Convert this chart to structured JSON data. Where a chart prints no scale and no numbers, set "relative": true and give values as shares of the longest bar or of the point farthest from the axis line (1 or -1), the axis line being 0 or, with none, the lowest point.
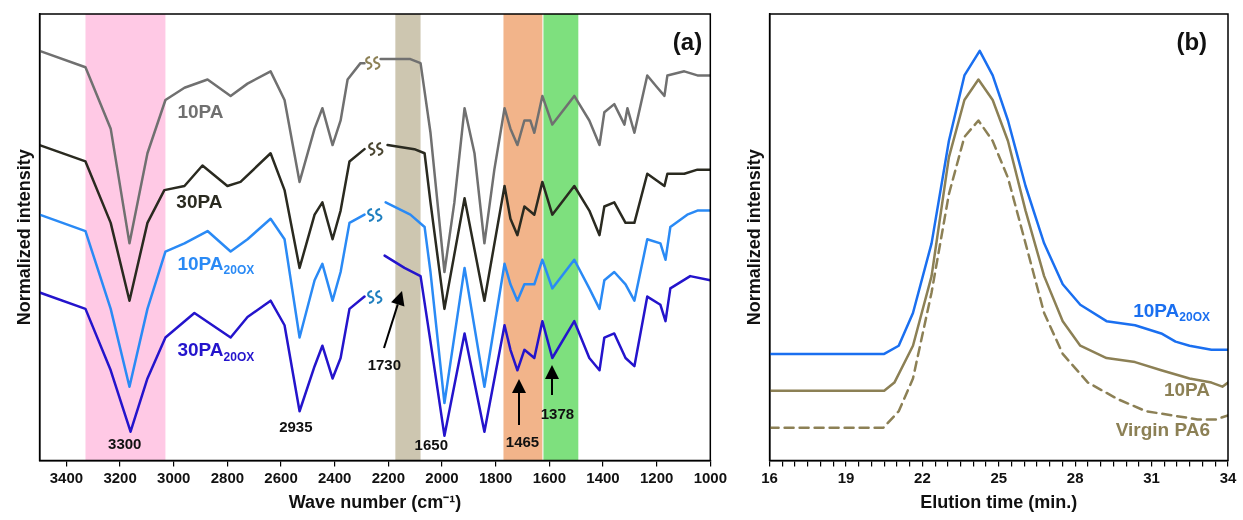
{
  "chart_data": [
    {
      "type": "line",
      "xlabel": "Wave number (cm⁻¹)",
      "ylabel": "Normalized intensity",
      "relative": true,
      "legend": false,
      "grid": false,
      "xlim": [
        3500,
        1000
      ],
      "xticks": [
        3400,
        3200,
        3000,
        2800,
        2600,
        2400,
        2200,
        2000,
        1800,
        1600,
        1400,
        1200,
        1000
      ],
      "bands": [
        {
          "axis": "x",
          "from": 3329,
          "to": 3031,
          "color": "#ffc9e5"
        },
        {
          "axis": "x",
          "from": 2174,
          "to": 2080,
          "color": "#cdc6b0"
        },
        {
          "axis": "x",
          "from": 1771,
          "to": 1626,
          "color": "#f2b48a"
        },
        {
          "axis": "x",
          "from": 1622,
          "to": 1492,
          "color": "#7ee07e"
        }
      ],
      "series": [
        {
          "name": "10PA",
          "color": "#707070",
          "x": [
            3500,
            3329,
            3235,
            3165,
            3098,
            3031,
            2960,
            2874,
            2788,
            2725,
            2639,
            2587,
            2531,
            2475,
            2446,
            2408,
            2378,
            2352,
            2304,
            2289,
            2250,
            2229,
            2118,
            2080,
            2043,
            1991,
            1954,
            1916,
            1879,
            1842,
            1805,
            1767,
            1745,
            1719,
            1693,
            1671,
            1656,
            1626,
            1589,
            1507,
            1451,
            1413,
            1395,
            1358,
            1320,
            1309,
            1283,
            1235,
            1197,
            1171,
            1160,
            1097,
            1048,
            1000
          ],
          "values": [
            1,
            0.96,
            0.81,
            0.53,
            0.75,
            0.88,
            0.91,
            0.93,
            0.89,
            0.92,
            0.95,
            0.88,
            0.68,
            0.81,
            0.86,
            0.77,
            0.83,
            0.93,
            0.97,
            0.97,
            null,
            0.98,
            0.98,
            0.97,
            0.8,
            0.46,
            0.63,
            0.86,
            0.75,
            0.53,
            0.71,
            0.86,
            0.81,
            0.77,
            0.83,
            0.83,
            0.8,
            0.89,
            0.82,
            0.89,
            0.83,
            0.77,
            0.85,
            0.87,
            0.82,
            0.86,
            0.8,
            0.94,
            0.91,
            0.89,
            0.94,
            0.95,
            0.94,
            0.94
          ]
        },
        {
          "name": "30PA",
          "color": "#2a2a20",
          "x": [
            3500,
            3329,
            3235,
            3165,
            3098,
            3035,
            2960,
            2893,
            2800,
            2751,
            2639,
            2587,
            2531,
            2475,
            2446,
            2408,
            2378,
            2345,
            2289,
            2250,
            2203,
            2103,
            2065,
            2043,
            1991,
            1916,
            1842,
            1767,
            1745,
            1719,
            1693,
            1656,
            1626,
            1589,
            1507,
            1451,
            1413,
            1395,
            1358,
            1316,
            1283,
            1235,
            1171,
            1160,
            1097,
            1048,
            1000
          ],
          "values": [
            0.77,
            0.73,
            0.58,
            0.39,
            0.58,
            0.66,
            0.67,
            0.72,
            0.67,
            0.68,
            0.75,
            0.66,
            0.47,
            0.6,
            0.63,
            0.54,
            0.61,
            0.73,
            0.76,
            null,
            0.77,
            0.76,
            0.75,
            0.63,
            0.37,
            0.64,
            0.39,
            0.67,
            0.59,
            0.55,
            0.62,
            0.6,
            0.68,
            0.6,
            0.67,
            0.61,
            0.55,
            0.62,
            0.63,
            0.58,
            0.58,
            0.7,
            0.67,
            0.7,
            0.7,
            0.71,
            0.71
          ]
        },
        {
          "name": "10PA$_{20OX}$",
          "color": "#2a8af5",
          "x": [
            3500,
            3329,
            3235,
            3165,
            3098,
            3031,
            2960,
            2874,
            2788,
            2725,
            2639,
            2587,
            2531,
            2475,
            2446,
            2408,
            2378,
            2345,
            2289,
            2250,
            2210,
            2118,
            2065,
            2043,
            1991,
            1916,
            1842,
            1767,
            1745,
            1719,
            1693,
            1656,
            1626,
            1589,
            1507,
            1451,
            1413,
            1395,
            1358,
            1316,
            1283,
            1235,
            1186,
            1167,
            1149,
            1086,
            1048,
            1000
          ],
          "values": [
            0.6,
            0.56,
            0.37,
            0.18,
            0.37,
            0.51,
            0.53,
            0.56,
            0.51,
            0.54,
            0.59,
            0.54,
            0.3,
            0.44,
            0.48,
            0.39,
            0.46,
            0.58,
            0.6,
            null,
            0.63,
            0.6,
            0.57,
            0.46,
            0.14,
            0.47,
            0.18,
            0.48,
            0.43,
            0.39,
            0.43,
            0.43,
            0.49,
            0.42,
            0.49,
            0.42,
            0.37,
            0.44,
            0.46,
            0.43,
            0.39,
            0.54,
            0.53,
            0.49,
            0.57,
            0.6,
            0.61,
            0.61
          ]
        },
        {
          "name": "30PA$_{20OX}$",
          "color": "#2414cc",
          "x": [
            3500,
            3329,
            3235,
            3161,
            3098,
            3031,
            2923,
            2788,
            2725,
            2639,
            2587,
            2531,
            2475,
            2446,
            2408,
            2378,
            2345,
            2289,
            2250,
            2214,
            2140,
            2080,
            2043,
            1991,
            1916,
            1842,
            1767,
            1745,
            1719,
            1693,
            1656,
            1626,
            1589,
            1507,
            1451,
            1413,
            1395,
            1358,
            1316,
            1283,
            1235,
            1186,
            1167,
            1149,
            1075,
            1000
          ],
          "values": [
            0.41,
            0.37,
            0.22,
            0.07,
            0.2,
            0.3,
            0.36,
            0.3,
            0.35,
            0.39,
            0.33,
            0.12,
            0.23,
            0.28,
            0.2,
            0.25,
            0.37,
            0.4,
            null,
            0.5,
            0.47,
            0.45,
            0.29,
            0.06,
            0.31,
            0.07,
            0.33,
            0.27,
            0.22,
            0.27,
            0.25,
            0.34,
            0.25,
            0.34,
            0.25,
            0.22,
            0.3,
            0.31,
            0.25,
            0.23,
            0.4,
            0.38,
            0.34,
            0.42,
            0.45,
            0.44
          ]
        }
      ],
      "annotations": [
        "3300",
        "2935",
        "1730",
        "1650",
        "1465",
        "1378",
        "(a)"
      ]
    },
    {
      "type": "line",
      "xlabel": "Elution time (min.)",
      "ylabel": "Normalized intensity",
      "relative": true,
      "legend": false,
      "grid": false,
      "xlim": [
        16,
        34
      ],
      "xticks": [
        16,
        {
          "value": 16.5,
          "label": null
        },
        {
          "value": 17,
          "label": null
        },
        {
          "value": 17.5,
          "label": null
        },
        {
          "value": 18,
          "label": null
        },
        {
          "value": 18.5,
          "label": null
        },
        19,
        {
          "value": 19.5,
          "label": null
        },
        {
          "value": 20,
          "label": null
        },
        {
          "value": 20.5,
          "label": null
        },
        {
          "value": 21,
          "label": null
        },
        {
          "value": 21.5,
          "label": null
        },
        22,
        {
          "value": 22.5,
          "label": null
        },
        {
          "value": 23,
          "label": null
        },
        {
          "value": 23.5,
          "label": null
        },
        {
          "value": 24,
          "label": null
        },
        {
          "value": 24.5,
          "label": null
        },
        25,
        {
          "value": 25.5,
          "label": null
        },
        {
          "value": 26,
          "label": null
        },
        {
          "value": 26.5,
          "label": null
        },
        {
          "value": 27,
          "label": null
        },
        {
          "value": 27.5,
          "label": null
        },
        28,
        {
          "value": 28.5,
          "label": null
        },
        {
          "value": 29,
          "label": null
        },
        {
          "value": 29.5,
          "label": null
        },
        {
          "value": 30,
          "label": null
        },
        {
          "value": 30.5,
          "label": null
        },
        31,
        {
          "value": 31.5,
          "label": null
        },
        {
          "value": 32,
          "label": null
        },
        {
          "value": 32.5,
          "label": null
        },
        {
          "value": 33,
          "label": null
        },
        {
          "value": 33.5,
          "label": null
        },
        34
      ],
      "series": [
        {
          "name": "10PA$_{20OX}$",
          "color": "#1a6ff0",
          "x": [
            16,
            20.5,
            21.07,
            21.63,
            22.36,
            23.04,
            23.65,
            24.25,
            24.76,
            25.36,
            26.05,
            26.78,
            27.51,
            28.2,
            29.23,
            30.35,
            31.38,
            31.94,
            32.49,
            33.35,
            34
          ],
          "values": [
            0.26,
            0.26,
            0.28,
            0.36,
            0.53,
            0.78,
            0.94,
            1,
            0.94,
            0.83,
            0.67,
            0.53,
            0.43,
            0.38,
            0.34,
            0.33,
            0.31,
            0.29,
            0.28,
            0.27,
            0.27
          ]
        },
        {
          "name": "10PA",
          "color": "#8c8055",
          "x": [
            16,
            20.5,
            20.9,
            21.63,
            22.36,
            23.04,
            23.65,
            24.2,
            24.76,
            25.36,
            26.05,
            26.78,
            27.51,
            28.2,
            29.23,
            30.35,
            31.38,
            32.49,
            33.35,
            33.78,
            34
          ],
          "values": [
            0.17,
            0.17,
            0.19,
            0.28,
            0.45,
            0.74,
            0.88,
            0.93,
            0.88,
            0.78,
            0.61,
            0.45,
            0.34,
            0.28,
            0.25,
            0.24,
            0.22,
            0.2,
            0.19,
            0.18,
            0.19
          ]
        },
        {
          "name": "Virgin PA6",
          "color": "#8c8055",
          "line_style": "dashed",
          "x": [
            16,
            20.47,
            21.07,
            21.63,
            22.36,
            23.04,
            23.65,
            24.2,
            24.76,
            25.36,
            26.05,
            26.78,
            27.51,
            28.5,
            29.66,
            30.78,
            31.81,
            32.8,
            33.53,
            34
          ],
          "values": [
            0.08,
            0.08,
            0.12,
            0.2,
            0.41,
            0.65,
            0.79,
            0.83,
            0.78,
            0.69,
            0.53,
            0.36,
            0.26,
            0.19,
            0.15,
            0.12,
            0.11,
            0.1,
            0.1,
            0.11
          ]
        }
      ],
      "annotations": [
        "(b)"
      ]
    }
  ]
}
